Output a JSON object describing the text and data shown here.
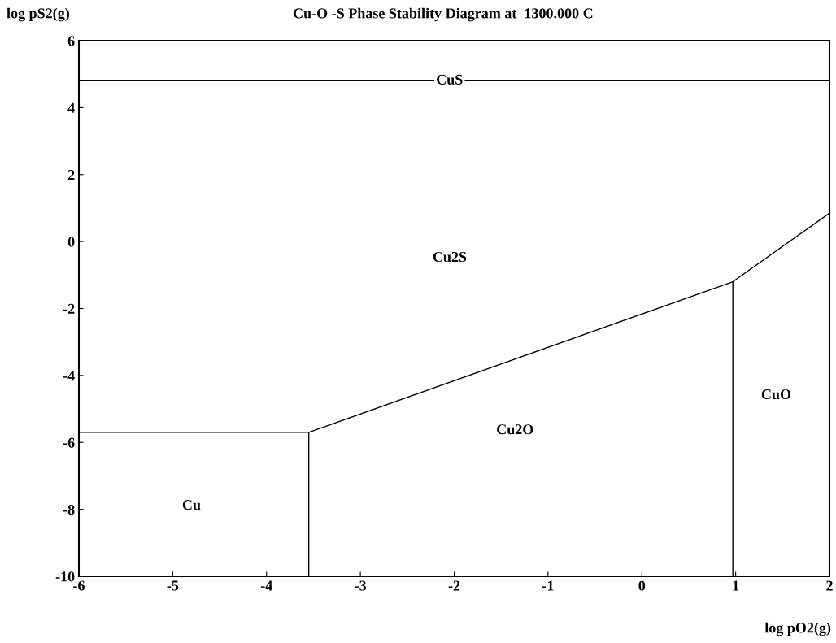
{
  "chart_data": {
    "type": "line",
    "title": "Cu-O -S Phase Stability Diagram at  1300.000 C",
    "xlabel": "log pO2(g)",
    "ylabel": "log pS2(g)",
    "xlim": [
      -6,
      2
    ],
    "ylim": [
      -10,
      6
    ],
    "xticks": [
      -6,
      -5,
      -4,
      -3,
      -2,
      -1,
      0,
      1,
      2
    ],
    "yticks": [
      -10,
      -8,
      -6,
      -4,
      -2,
      0,
      2,
      4,
      6
    ],
    "series": [
      {
        "color": "#000000",
        "x": [
          -6,
          2
        ],
        "values": [
          4.8,
          4.8
        ]
      },
      {
        "color": "#000000",
        "x": [
          -6,
          -3.55,
          0.97,
          2
        ],
        "values": [
          -5.7,
          -5.7,
          -1.2,
          0.85
        ]
      },
      {
        "color": "#000000",
        "x": [
          -3.55,
          -3.55
        ],
        "values": [
          -5.7,
          -10
        ]
      },
      {
        "color": "#000000",
        "x": [
          0.97,
          0.97
        ],
        "values": [
          -1.2,
          -10
        ]
      }
    ],
    "annotations": [
      {
        "text": "CuS",
        "x": -2.05,
        "y": 4.8
      },
      "Cu2S",
      "Cu2O",
      "CuO",
      "Cu"
    ]
  }
}
